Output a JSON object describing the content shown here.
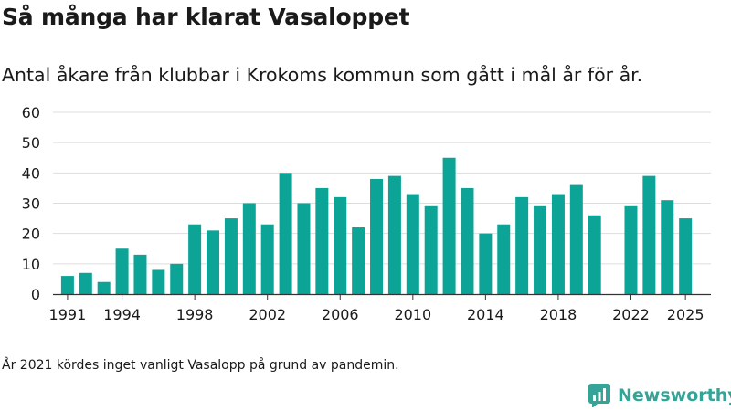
{
  "title": "Så många har klarat Vasaloppet",
  "subtitle": "Antal åkare från klubbar i Krokoms kommun som gått i mål år för år.",
  "footnote": "År 2021 kördes inget vanligt Vasalopp på grund av pandemin.",
  "brand": {
    "name": "Newsworthy",
    "icon": "newsworthy-logo-icon"
  },
  "colors": {
    "bar": "#0ba497",
    "grid": "#dddddd",
    "axis": "#333333",
    "text": "#1a1a1a"
  },
  "chart_data": {
    "type": "bar",
    "title": "Så många har klarat Vasaloppet",
    "xlabel": "",
    "ylabel": "",
    "x": [
      1991,
      1992,
      1993,
      1994,
      1995,
      1996,
      1997,
      1998,
      1999,
      2000,
      2001,
      2002,
      2003,
      2004,
      2005,
      2006,
      2007,
      2008,
      2009,
      2010,
      2011,
      2012,
      2013,
      2014,
      2015,
      2016,
      2017,
      2018,
      2019,
      2020,
      2021,
      2022,
      2023,
      2024,
      2025
    ],
    "values": [
      6,
      7,
      4,
      15,
      13,
      8,
      10,
      23,
      21,
      25,
      30,
      23,
      40,
      30,
      35,
      32,
      22,
      38,
      39,
      33,
      29,
      45,
      35,
      20,
      23,
      32,
      29,
      33,
      36,
      26,
      null,
      29,
      39,
      31,
      25
    ],
    "xticks": [
      1991,
      1994,
      1998,
      2002,
      2006,
      2010,
      2014,
      2018,
      2022,
      2025
    ],
    "yticks": [
      0,
      10,
      20,
      30,
      40,
      50,
      60
    ],
    "ylim": [
      0,
      60
    ],
    "grid": true,
    "legend": "none"
  }
}
